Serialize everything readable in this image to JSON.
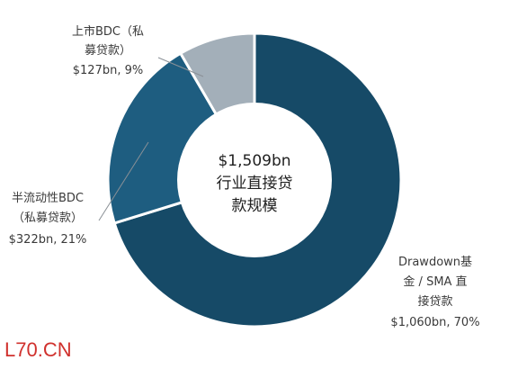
{
  "chart_data": {
    "type": "pie",
    "variant": "donut",
    "center_text": [
      "$1,509bn",
      "行业直接贷",
      "款规模"
    ],
    "total": 1509,
    "unit": "bn USD",
    "slices": [
      {
        "label_lines": [
          "Drawdown基",
          "金 / SMA 直",
          "接贷款"
        ],
        "value_text": "$1,060bn, 70%",
        "value": 1060,
        "percent": 70,
        "color": "#164a67"
      },
      {
        "label_lines": [
          "半流动性BDC",
          "（私募贷款）"
        ],
        "value_text": "$322bn, 21%",
        "value": 322,
        "percent": 21,
        "color": "#1e5d80"
      },
      {
        "label_lines": [
          "上市BDC（私",
          "募贷款）"
        ],
        "value_text": "$127bn, 9%",
        "value": 127,
        "percent": 9,
        "color": "#a3afb9"
      }
    ],
    "start_angle_deg": 0,
    "direction": "clockwise"
  },
  "watermark": "L70.CN"
}
